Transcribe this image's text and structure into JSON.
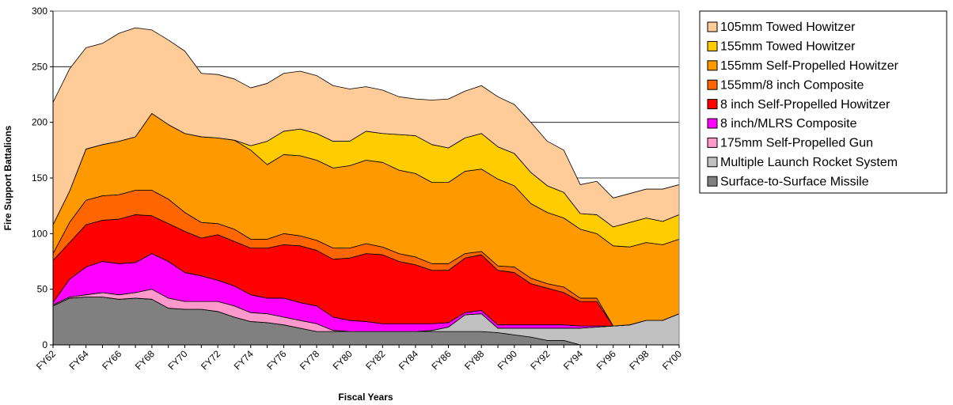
{
  "chart_data": {
    "type": "stacked_area",
    "x_label": "Fiscal Years",
    "y_label": "Fire Support Battalions",
    "categories": [
      "FY62",
      null,
      "FY64",
      null,
      "FY66",
      null,
      "FY68",
      null,
      "FY70",
      null,
      "FY72",
      null,
      "FY74",
      null,
      "FY76",
      null,
      "FY78",
      null,
      "FY80",
      null,
      "FY82",
      null,
      "FY84",
      null,
      "FY86",
      null,
      "FY88",
      null,
      "FY90",
      null,
      "FY92",
      null,
      "FY94",
      null,
      "FY96",
      null,
      "FY98",
      null,
      "FY00"
    ],
    "ylim": [
      0,
      300
    ],
    "yticks": [
      0,
      50,
      100,
      150,
      200,
      250,
      300
    ],
    "grid": true,
    "series": [
      {
        "name": "Surface-to-Surface Missile",
        "color": "#808080",
        "values": [
          35,
          42,
          43,
          43,
          41,
          42,
          41,
          33,
          32,
          32,
          30,
          25,
          21,
          20,
          18,
          15,
          12,
          12,
          12,
          12,
          12,
          12,
          12,
          12,
          12,
          12,
          12,
          11,
          9,
          7,
          4,
          4,
          0,
          0,
          0,
          0,
          0,
          0,
          0
        ]
      },
      {
        "name": "Multiple Launch Rocket System",
        "color": "#c0c0c0",
        "values": [
          0,
          0,
          0,
          0,
          0,
          0,
          0,
          0,
          0,
          0,
          0,
          0,
          0,
          0,
          0,
          0,
          0,
          0,
          0,
          0,
          0,
          0,
          0,
          1,
          4,
          15,
          16,
          4,
          6,
          8,
          11,
          11,
          15,
          16,
          17,
          18,
          22,
          22,
          28
        ]
      },
      {
        "name": "175mm Self-Propelled Gun",
        "color": "#ff99cc",
        "values": [
          1,
          1,
          2,
          4,
          4,
          5,
          9,
          9,
          7,
          7,
          9,
          10,
          8,
          8,
          7,
          7,
          7,
          1,
          0,
          0,
          0,
          0,
          0,
          0,
          0,
          0,
          0,
          0,
          0,
          0,
          0,
          0,
          0,
          0,
          0,
          0,
          0,
          0,
          0
        ]
      },
      {
        "name": "8 inch/MLRS Composite",
        "color": "#ff00ff",
        "values": [
          2,
          16,
          25,
          28,
          28,
          27,
          32,
          33,
          26,
          23,
          19,
          18,
          16,
          14,
          17,
          16,
          16,
          12,
          10,
          9,
          7,
          7,
          7,
          6,
          4,
          2,
          3,
          3,
          3,
          3,
          3,
          3,
          2,
          1,
          0,
          0,
          0,
          0,
          0
        ]
      },
      {
        "name": "8 inch Self-Propelled Howitzer",
        "color": "#ff0000",
        "values": [
          38,
          33,
          38,
          37,
          40,
          43,
          34,
          34,
          37,
          34,
          41,
          40,
          42,
          45,
          48,
          51,
          50,
          52,
          56,
          61,
          62,
          56,
          53,
          48,
          47,
          49,
          50,
          49,
          47,
          37,
          33,
          29,
          22,
          22,
          0,
          0,
          0,
          0,
          0
        ]
      },
      {
        "name": "155mm/8 inch Composite",
        "color": "#ff6600",
        "values": [
          6,
          18,
          22,
          22,
          22,
          22,
          23,
          22,
          17,
          14,
          10,
          11,
          8,
          8,
          10,
          9,
          9,
          10,
          9,
          9,
          7,
          7,
          7,
          6,
          6,
          4,
          3,
          4,
          5,
          5,
          4,
          5,
          3,
          3,
          0,
          0,
          0,
          0,
          0
        ]
      },
      {
        "name": "155mm Self-Propelled Howitzer",
        "color": "#ff9900",
        "values": [
          26,
          28,
          46,
          46,
          48,
          48,
          69,
          67,
          71,
          77,
          77,
          80,
          80,
          67,
          71,
          72,
          72,
          72,
          74,
          75,
          76,
          75,
          75,
          73,
          73,
          74,
          74,
          78,
          73,
          67,
          64,
          62,
          62,
          58,
          72,
          70,
          70,
          68,
          67
        ]
      },
      {
        "name": "155mm Towed Howitzer",
        "color": "#ffcc00",
        "values": [
          0,
          0,
          0,
          0,
          0,
          0,
          0,
          0,
          0,
          0,
          0,
          0,
          4,
          21,
          21,
          24,
          24,
          24,
          22,
          26,
          26,
          32,
          34,
          34,
          31,
          30,
          32,
          29,
          29,
          28,
          24,
          23,
          14,
          17,
          17,
          22,
          22,
          21,
          22
        ]
      },
      {
        "name": "105mm Towed Howitzer",
        "color": "#ffcc99",
        "values": [
          110,
          110,
          91,
          91,
          97,
          98,
          75,
          76,
          74,
          57,
          57,
          55,
          52,
          52,
          52,
          52,
          52,
          50,
          47,
          40,
          39,
          34,
          33,
          40,
          44,
          42,
          43,
          45,
          44,
          45,
          40,
          38,
          26,
          30,
          26,
          26,
          26,
          29,
          27
        ]
      }
    ]
  }
}
